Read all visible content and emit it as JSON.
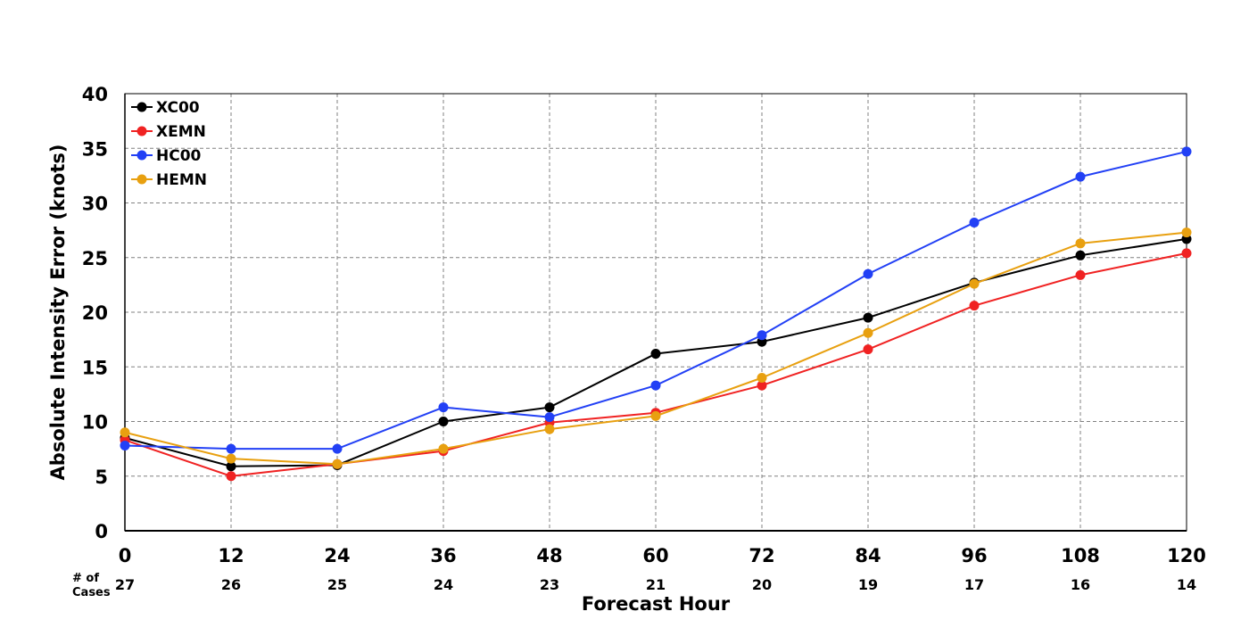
{
  "chart_data": {
    "type": "line",
    "title": "",
    "xlabel": "Forecast Hour",
    "ylabel": "Absolute Intensity Error (knots)",
    "x": [
      0,
      12,
      24,
      36,
      48,
      60,
      72,
      84,
      96,
      108,
      120
    ],
    "x_tick_labels": [
      "0",
      "12",
      "24",
      "36",
      "48",
      "60",
      "72",
      "84",
      "96",
      "108",
      "120"
    ],
    "xlim": [
      0,
      120
    ],
    "ylim": [
      0,
      40
    ],
    "y_ticks": [
      0,
      5,
      10,
      15,
      20,
      25,
      30,
      35,
      40
    ],
    "y_tick_labels": [
      "0",
      "5",
      "10",
      "15",
      "20",
      "25",
      "30",
      "35",
      "40"
    ],
    "grid": true,
    "legend_position": "top-left",
    "cases_caption": "# of Cases",
    "cases_caption_lines": [
      "# of",
      "Cases"
    ],
    "case_counts": [
      "27",
      "26",
      "25",
      "24",
      "23",
      "21",
      "20",
      "19",
      "17",
      "16",
      "14"
    ],
    "series": [
      {
        "name": "XC00",
        "color": "#000000",
        "values": [
          8.5,
          5.9,
          6.0,
          10.0,
          11.3,
          16.2,
          17.3,
          19.5,
          22.7,
          25.2,
          26.7
        ]
      },
      {
        "name": "XEMN",
        "color": "#f02222",
        "values": [
          8.3,
          5.0,
          6.1,
          7.3,
          9.9,
          10.8,
          13.3,
          16.6,
          20.6,
          23.4,
          25.4
        ]
      },
      {
        "name": "HC00",
        "color": "#2240f5",
        "values": [
          7.8,
          7.5,
          7.5,
          11.3,
          10.4,
          13.3,
          17.9,
          23.5,
          28.2,
          32.4,
          34.7
        ]
      },
      {
        "name": "HEMN",
        "color": "#e8a010",
        "values": [
          9.0,
          6.6,
          6.1,
          7.5,
          9.3,
          10.5,
          14.0,
          18.1,
          22.6,
          26.3,
          27.3
        ]
      }
    ]
  }
}
